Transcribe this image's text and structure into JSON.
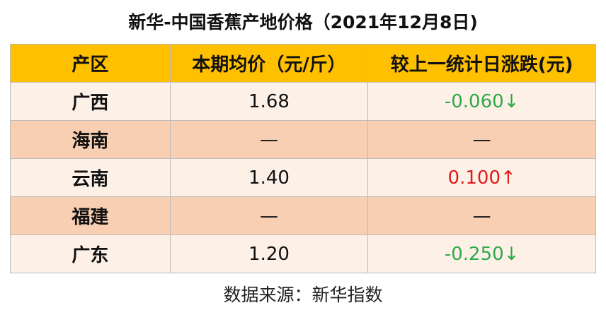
{
  "title": "新华-中国香蕉产地价格（2021年12月8日)",
  "table": {
    "header": [
      "产区",
      "本期均价（元/斤）",
      "较上一统计日涨跌(元)"
    ],
    "rows": [
      [
        "广西",
        "1.68",
        "-0.060↓"
      ],
      [
        "海南",
        "—",
        "—"
      ],
      [
        "云南",
        "1.40",
        "0.100↑"
      ],
      [
        "福建",
        "—",
        "—"
      ],
      [
        "广东",
        "1.20",
        "-0.250↓"
      ]
    ]
  },
  "source": "数据来源：新华指数"
}
